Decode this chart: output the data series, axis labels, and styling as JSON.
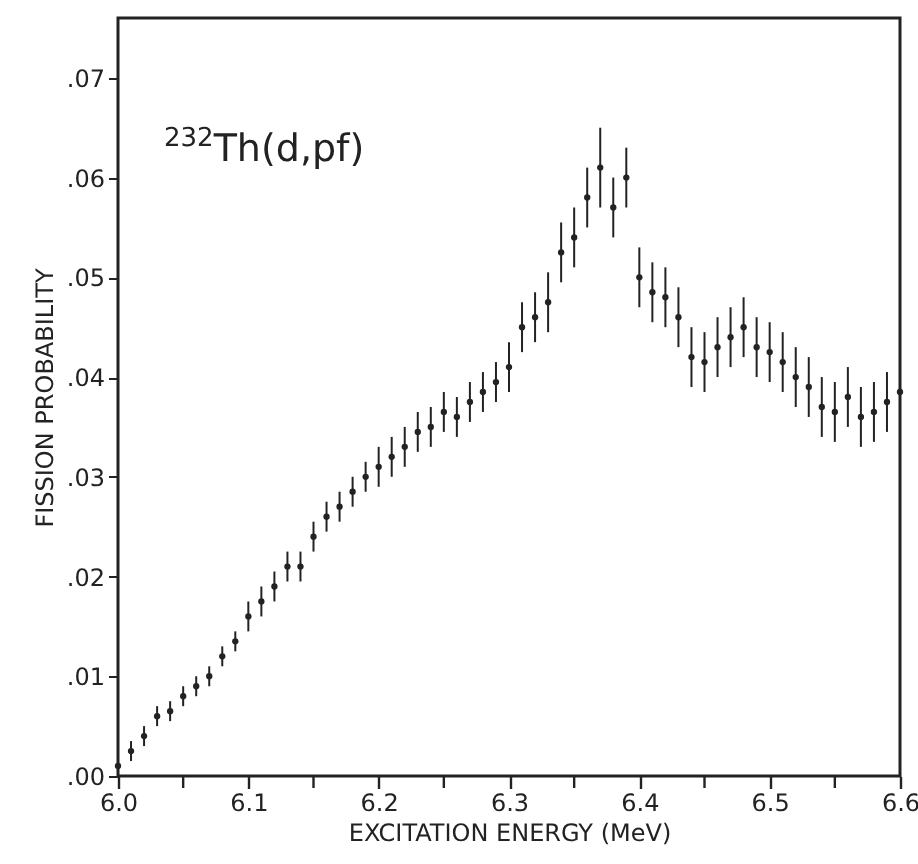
{
  "chart_data": {
    "type": "scatter",
    "xlabel": "EXCITATION ENERGY  (MeV)",
    "ylabel": "FISSION PROBABILITY",
    "annotations": [
      "$^{232}$Th(d,pf)"
    ],
    "marker": "circle",
    "x": [
      6.0,
      6.01,
      6.02,
      6.03,
      6.04,
      6.05,
      6.06,
      6.07,
      6.08,
      6.09,
      6.1,
      6.11,
      6.12,
      6.13,
      6.14,
      6.15,
      6.16,
      6.17,
      6.18,
      6.19,
      6.2,
      6.21,
      6.22,
      6.23,
      6.24,
      6.25,
      6.26,
      6.27,
      6.28,
      6.29,
      6.3,
      6.31,
      6.32,
      6.33,
      6.34,
      6.35,
      6.36,
      6.37,
      6.38,
      6.39,
      6.4,
      6.41,
      6.42,
      6.43,
      6.44,
      6.45,
      6.46,
      6.47,
      6.48,
      6.49,
      6.5,
      6.51,
      6.52,
      6.53,
      6.54,
      6.55,
      6.56,
      6.57,
      6.58,
      6.59,
      6.6
    ],
    "series": [
      {
        "color": "#222222",
        "values": [
          0.001,
          0.0025,
          0.004,
          0.006,
          0.0065,
          0.008,
          0.009,
          0.01,
          0.012,
          0.0135,
          0.016,
          0.0175,
          0.019,
          0.021,
          0.021,
          0.024,
          0.026,
          0.027,
          0.0285,
          0.03,
          0.031,
          0.032,
          0.033,
          0.0345,
          0.035,
          0.0365,
          0.036,
          0.0375,
          0.0385,
          0.0395,
          0.041,
          0.045,
          0.046,
          0.0475,
          0.0525,
          0.054,
          0.058,
          0.061,
          0.057,
          0.06,
          0.05,
          0.0485,
          0.048,
          0.046,
          0.042,
          0.0415,
          0.043,
          0.044,
          0.045,
          0.043,
          0.0425,
          0.0415,
          0.04,
          0.039,
          0.037,
          0.0365,
          0.038,
          0.036,
          0.0365,
          0.0375,
          0.0385
        ],
        "errors": [
          0.001,
          0.001,
          0.001,
          0.001,
          0.001,
          0.001,
          0.001,
          0.001,
          0.001,
          0.001,
          0.0015,
          0.0015,
          0.0015,
          0.0015,
          0.0015,
          0.0015,
          0.0015,
          0.0015,
          0.0015,
          0.0015,
          0.002,
          0.002,
          0.002,
          0.002,
          0.002,
          0.002,
          0.002,
          0.002,
          0.002,
          0.002,
          0.0025,
          0.0025,
          0.0025,
          0.003,
          0.003,
          0.003,
          0.003,
          0.004,
          0.003,
          0.003,
          0.003,
          0.003,
          0.003,
          0.003,
          0.003,
          0.003,
          0.003,
          0.003,
          0.003,
          0.003,
          0.003,
          0.003,
          0.003,
          0.003,
          0.003,
          0.003,
          0.003,
          0.003,
          0.003,
          0.003,
          0.003
        ]
      }
    ],
    "xlim": [
      6.0,
      6.6
    ],
    "xticks": [
      {
        "value": 6.0,
        "label": "6.0"
      },
      {
        "value": 6.05,
        "label": null
      },
      {
        "value": 6.1,
        "label": "6.1"
      },
      {
        "value": 6.15,
        "label": null
      },
      {
        "value": 6.2,
        "label": "6.2"
      },
      {
        "value": 6.25,
        "label": null
      },
      {
        "value": 6.3,
        "label": "6.3"
      },
      {
        "value": 6.35,
        "label": null
      },
      {
        "value": 6.4,
        "label": "6.4"
      },
      {
        "value": 6.45,
        "label": null
      },
      {
        "value": 6.5,
        "label": "6.5"
      },
      {
        "value": 6.55,
        "label": null
      },
      {
        "value": 6.6,
        "label": "6.6"
      }
    ],
    "ylim": [
      0,
      0.076
    ],
    "yticks": [
      {
        "value": 0,
        "label": ".00"
      },
      {
        "value": 0.01,
        "label": ".01"
      },
      {
        "value": 0.02,
        "label": ".02"
      },
      {
        "value": 0.03,
        "label": ".03"
      },
      {
        "value": 0.04,
        "label": ".04"
      },
      {
        "value": 0.05,
        "label": ".05"
      },
      {
        "value": 0.06,
        "label": ".06"
      },
      {
        "value": 0.07,
        "label": ".07"
      }
    ]
  }
}
